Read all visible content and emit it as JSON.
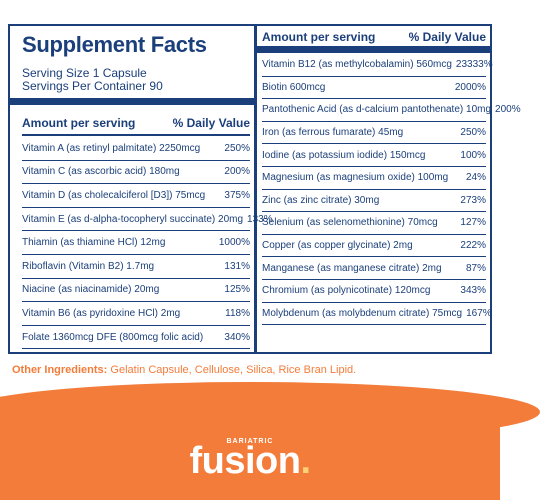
{
  "facts": {
    "title": "Supplement Facts",
    "serving_size": "Serving Size 1 Capsule",
    "servings_per_container": "Servings Per Container 90",
    "header_amount": "Amount per serving",
    "header_dv": "% Daily Value",
    "left_rows": [
      {
        "name": "Vitamin A (as retinyl palmitate) 2250mcg",
        "dv": "250%"
      },
      {
        "name": "Vitamin C (as ascorbic acid) 180mg",
        "dv": "200%"
      },
      {
        "name": "Vitamin D (as cholecalciferol [D3]) 75mcg",
        "dv": "375%"
      },
      {
        "name": "Vitamin E (as d-alpha-tocopheryl succinate) 20mg",
        "dv": "133%"
      },
      {
        "name": "Thiamin (as thiamine HCl) 12mg",
        "dv": "1000%"
      },
      {
        "name": "Riboflavin (Vitamin B2) 1.7mg",
        "dv": "131%"
      },
      {
        "name": "Niacine (as niacinamide) 20mg",
        "dv": "125%"
      },
      {
        "name": "Vitamin B6 (as pyridoxine HCl) 2mg",
        "dv": "118%"
      },
      {
        "name": "Folate 1360mcg DFE (800mcg folic acid)",
        "dv": "340%"
      }
    ],
    "right_rows": [
      {
        "name": "Vitamin B12 (as methylcobalamin) 560mcg",
        "dv": "23333%"
      },
      {
        "name": "Biotin 600mcg",
        "dv": "2000%"
      },
      {
        "name": "Pantothenic Acid (as d-calcium pantothenate) 10mg",
        "dv": "200%"
      },
      {
        "name": "Iron (as ferrous fumarate) 45mg",
        "dv": "250%"
      },
      {
        "name": "Iodine (as potassium iodide) 150mcg",
        "dv": "100%"
      },
      {
        "name": "Magnesium (as magnesium oxide) 100mg",
        "dv": "24%"
      },
      {
        "name": "Zinc (as zinc citrate) 30mg",
        "dv": "273%"
      },
      {
        "name": "Selenium (as selenomethionine) 70mcg",
        "dv": "127%"
      },
      {
        "name": "Copper (as copper glycinate) 2mg",
        "dv": "222%"
      },
      {
        "name": "Manganese (as manganese citrate) 2mg",
        "dv": "87%"
      },
      {
        "name": "Chromium (as polynicotinate) 120mcg",
        "dv": "343%"
      },
      {
        "name": "Molybdenum (as molybdenum citrate) 75mcg",
        "dv": "167%"
      }
    ]
  },
  "other": {
    "label": "Other Ingredients:",
    "text": "Gelatin Capsule, Cellulose, Silica, Rice Bran Lipid."
  },
  "brand": {
    "sub": "BARIATRIC",
    "name": "fusion",
    "dot": "."
  },
  "colors": {
    "navy": "#1b3f7a",
    "orange": "#f37c3a"
  }
}
